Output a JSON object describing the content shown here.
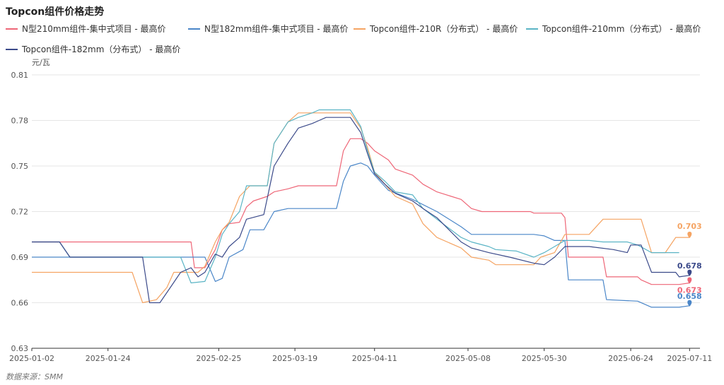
{
  "title": "Topcon组件价格走势",
  "source": "数据来源：SMM",
  "chart_data": {
    "type": "line",
    "unit": "元/瓦",
    "ylim": [
      0.63,
      0.81
    ],
    "yticks": [
      "0.81",
      "0.78",
      "0.75",
      "0.72",
      "0.69",
      "0.66",
      "0.63"
    ],
    "xticks": [
      "2025-01-02",
      "2025-01-24",
      "2025-02-25",
      "2025-03-19",
      "2025-04-11",
      "2025-05-08",
      "2025-05-30",
      "2025-06-24",
      "2025-07-11"
    ],
    "grid": true,
    "legend": "top",
    "series": [
      {
        "name": "N型210mm组件-集中式项目 - 最高价",
        "color": "#ee6677",
        "end_label": "0.673",
        "points": [
          [
            "2025-01-02",
            0.7
          ],
          [
            "2025-02-17",
            0.7
          ],
          [
            "2025-02-18",
            0.683
          ],
          [
            "2025-02-21",
            0.683
          ],
          [
            "2025-02-24",
            0.695
          ],
          [
            "2025-02-26",
            0.708
          ],
          [
            "2025-02-28",
            0.712
          ],
          [
            "2025-03-03",
            0.713
          ],
          [
            "2025-03-05",
            0.723
          ],
          [
            "2025-03-07",
            0.727
          ],
          [
            "2025-03-11",
            0.73
          ],
          [
            "2025-03-13",
            0.733
          ],
          [
            "2025-03-17",
            0.735
          ],
          [
            "2025-03-20",
            0.737
          ],
          [
            "2025-03-31",
            0.737
          ],
          [
            "2025-04-02",
            0.76
          ],
          [
            "2025-04-04",
            0.768
          ],
          [
            "2025-04-07",
            0.768
          ],
          [
            "2025-04-09",
            0.765
          ],
          [
            "2025-04-11",
            0.76
          ],
          [
            "2025-04-15",
            0.754
          ],
          [
            "2025-04-17",
            0.748
          ],
          [
            "2025-04-22",
            0.744
          ],
          [
            "2025-04-25",
            0.738
          ],
          [
            "2025-04-29",
            0.733
          ],
          [
            "2025-05-06",
            0.728
          ],
          [
            "2025-05-09",
            0.722
          ],
          [
            "2025-05-12",
            0.72
          ],
          [
            "2025-05-26",
            0.72
          ],
          [
            "2025-05-27",
            0.719
          ],
          [
            "2025-06-04",
            0.719
          ],
          [
            "2025-06-05",
            0.716
          ],
          [
            "2025-06-06",
            0.69
          ],
          [
            "2025-06-16",
            0.69
          ],
          [
            "2025-06-17",
            0.677
          ],
          [
            "2025-06-26",
            0.677
          ],
          [
            "2025-06-27",
            0.675
          ],
          [
            "2025-06-30",
            0.672
          ],
          [
            "2025-07-08",
            0.672
          ],
          [
            "2025-07-11",
            0.673
          ]
        ]
      },
      {
        "name": "N型182mm组件-集中式项目 - 最高价",
        "color": "#4a86c8",
        "end_label": "0.658",
        "points": [
          [
            "2025-01-02",
            0.69
          ],
          [
            "2025-02-21",
            0.69
          ],
          [
            "2025-02-24",
            0.674
          ],
          [
            "2025-02-26",
            0.676
          ],
          [
            "2025-02-28",
            0.69
          ],
          [
            "2025-03-04",
            0.695
          ],
          [
            "2025-03-06",
            0.708
          ],
          [
            "2025-03-10",
            0.708
          ],
          [
            "2025-03-13",
            0.72
          ],
          [
            "2025-03-17",
            0.722
          ],
          [
            "2025-03-31",
            0.722
          ],
          [
            "2025-04-02",
            0.74
          ],
          [
            "2025-04-04",
            0.75
          ],
          [
            "2025-04-07",
            0.752
          ],
          [
            "2025-04-09",
            0.75
          ],
          [
            "2025-04-11",
            0.744
          ],
          [
            "2025-04-15",
            0.734
          ],
          [
            "2025-04-22",
            0.728
          ],
          [
            "2025-04-29",
            0.72
          ],
          [
            "2025-05-06",
            0.71
          ],
          [
            "2025-05-09",
            0.705
          ],
          [
            "2025-05-27",
            0.705
          ],
          [
            "2025-05-30",
            0.704
          ],
          [
            "2025-06-02",
            0.701
          ],
          [
            "2025-06-05",
            0.701
          ],
          [
            "2025-06-06",
            0.675
          ],
          [
            "2025-06-16",
            0.675
          ],
          [
            "2025-06-17",
            0.662
          ],
          [
            "2025-06-26",
            0.661
          ],
          [
            "2025-06-30",
            0.657
          ],
          [
            "2025-07-08",
            0.657
          ],
          [
            "2025-07-11",
            0.658
          ]
        ]
      },
      {
        "name": "Topcon组件-210R（分布式） - 最高价",
        "color": "#f5a463",
        "end_label": "0.703",
        "points": [
          [
            "2025-01-02",
            0.68
          ],
          [
            "2025-01-31",
            0.68
          ],
          [
            "2025-02-03",
            0.66
          ],
          [
            "2025-02-07",
            0.662
          ],
          [
            "2025-02-10",
            0.67
          ],
          [
            "2025-02-12",
            0.68
          ],
          [
            "2025-02-19",
            0.68
          ],
          [
            "2025-02-21",
            0.684
          ],
          [
            "2025-02-24",
            0.7
          ],
          [
            "2025-02-26",
            0.708
          ],
          [
            "2025-02-28",
            0.713
          ],
          [
            "2025-03-03",
            0.73
          ],
          [
            "2025-03-06",
            0.737
          ],
          [
            "2025-03-11",
            0.737
          ],
          [
            "2025-03-13",
            0.765
          ],
          [
            "2025-03-17",
            0.779
          ],
          [
            "2025-03-20",
            0.785
          ],
          [
            "2025-04-04",
            0.785
          ],
          [
            "2025-04-07",
            0.775
          ],
          [
            "2025-04-09",
            0.762
          ],
          [
            "2025-04-11",
            0.746
          ],
          [
            "2025-04-14",
            0.738
          ],
          [
            "2025-04-17",
            0.73
          ],
          [
            "2025-04-22",
            0.725
          ],
          [
            "2025-04-25",
            0.712
          ],
          [
            "2025-04-29",
            0.703
          ],
          [
            "2025-05-06",
            0.696
          ],
          [
            "2025-05-09",
            0.69
          ],
          [
            "2025-05-14",
            0.688
          ],
          [
            "2025-05-16",
            0.685
          ],
          [
            "2025-05-27",
            0.685
          ],
          [
            "2025-05-29",
            0.69
          ],
          [
            "2025-06-02",
            0.693
          ],
          [
            "2025-06-05",
            0.705
          ],
          [
            "2025-06-12",
            0.705
          ],
          [
            "2025-06-16",
            0.715
          ],
          [
            "2025-06-27",
            0.715
          ],
          [
            "2025-06-30",
            0.693
          ],
          [
            "2025-07-04",
            0.693
          ],
          [
            "2025-07-07",
            0.703
          ],
          [
            "2025-07-11",
            0.703
          ]
        ]
      },
      {
        "name": "Topcon组件-210mm（分布式） - 最高价",
        "color": "#5ab4c5",
        "end_label": "",
        "points": [
          [
            "2025-01-02",
            0.7
          ],
          [
            "2025-01-10",
            0.7
          ],
          [
            "2025-01-13",
            0.69
          ],
          [
            "2025-02-14",
            0.69
          ],
          [
            "2025-02-17",
            0.673
          ],
          [
            "2025-02-21",
            0.674
          ],
          [
            "2025-02-24",
            0.69
          ],
          [
            "2025-02-26",
            0.705
          ],
          [
            "2025-02-28",
            0.712
          ],
          [
            "2025-03-03",
            0.72
          ],
          [
            "2025-03-05",
            0.737
          ],
          [
            "2025-03-11",
            0.737
          ],
          [
            "2025-03-13",
            0.765
          ],
          [
            "2025-03-17",
            0.779
          ],
          [
            "2025-03-20",
            0.782
          ],
          [
            "2025-03-24",
            0.785
          ],
          [
            "2025-03-26",
            0.787
          ],
          [
            "2025-04-04",
            0.787
          ],
          [
            "2025-04-07",
            0.776
          ],
          [
            "2025-04-09",
            0.76
          ],
          [
            "2025-04-11",
            0.746
          ],
          [
            "2025-04-14",
            0.74
          ],
          [
            "2025-04-17",
            0.733
          ],
          [
            "2025-04-22",
            0.731
          ],
          [
            "2025-04-25",
            0.722
          ],
          [
            "2025-04-29",
            0.715
          ],
          [
            "2025-05-06",
            0.703
          ],
          [
            "2025-05-09",
            0.7
          ],
          [
            "2025-05-14",
            0.697
          ],
          [
            "2025-05-16",
            0.695
          ],
          [
            "2025-05-22",
            0.694
          ],
          [
            "2025-05-27",
            0.69
          ],
          [
            "2025-05-30",
            0.693
          ],
          [
            "2025-06-05",
            0.701
          ],
          [
            "2025-06-12",
            0.701
          ],
          [
            "2025-06-16",
            0.7
          ],
          [
            "2025-06-23",
            0.7
          ],
          [
            "2025-06-26",
            0.698
          ],
          [
            "2025-06-30",
            0.693
          ],
          [
            "2025-07-08",
            0.693
          ]
        ]
      },
      {
        "name": "Topcon组件-182mm（分布式） - 最高价",
        "color": "#3b4a8a",
        "end_label": "0.678",
        "points": [
          [
            "2025-01-02",
            0.7
          ],
          [
            "2025-01-10",
            0.7
          ],
          [
            "2025-01-13",
            0.69
          ],
          [
            "2025-02-03",
            0.69
          ],
          [
            "2025-02-05",
            0.66
          ],
          [
            "2025-02-08",
            0.66
          ],
          [
            "2025-02-11",
            0.67
          ],
          [
            "2025-02-14",
            0.68
          ],
          [
            "2025-02-17",
            0.683
          ],
          [
            "2025-02-19",
            0.677
          ],
          [
            "2025-02-21",
            0.68
          ],
          [
            "2025-02-24",
            0.692
          ],
          [
            "2025-02-26",
            0.69
          ],
          [
            "2025-02-28",
            0.697
          ],
          [
            "2025-03-03",
            0.703
          ],
          [
            "2025-03-05",
            0.715
          ],
          [
            "2025-03-10",
            0.718
          ],
          [
            "2025-03-13",
            0.75
          ],
          [
            "2025-03-17",
            0.765
          ],
          [
            "2025-03-20",
            0.775
          ],
          [
            "2025-03-24",
            0.778
          ],
          [
            "2025-03-26",
            0.78
          ],
          [
            "2025-03-28",
            0.782
          ],
          [
            "2025-04-04",
            0.782
          ],
          [
            "2025-04-07",
            0.772
          ],
          [
            "2025-04-09",
            0.758
          ],
          [
            "2025-04-11",
            0.745
          ],
          [
            "2025-04-14",
            0.738
          ],
          [
            "2025-04-17",
            0.732
          ],
          [
            "2025-04-22",
            0.727
          ],
          [
            "2025-04-25",
            0.722
          ],
          [
            "2025-04-29",
            0.716
          ],
          [
            "2025-05-06",
            0.7
          ],
          [
            "2025-05-09",
            0.696
          ],
          [
            "2025-05-14",
            0.693
          ],
          [
            "2025-05-20",
            0.69
          ],
          [
            "2025-05-27",
            0.686
          ],
          [
            "2025-05-30",
            0.685
          ],
          [
            "2025-06-02",
            0.69
          ],
          [
            "2025-06-05",
            0.697
          ],
          [
            "2025-06-12",
            0.697
          ],
          [
            "2025-06-19",
            0.695
          ],
          [
            "2025-06-23",
            0.693
          ],
          [
            "2025-06-24",
            0.698
          ],
          [
            "2025-06-27",
            0.698
          ],
          [
            "2025-06-30",
            0.68
          ],
          [
            "2025-07-07",
            0.68
          ],
          [
            "2025-07-08",
            0.677
          ],
          [
            "2025-07-11",
            0.678
          ]
        ]
      }
    ]
  }
}
